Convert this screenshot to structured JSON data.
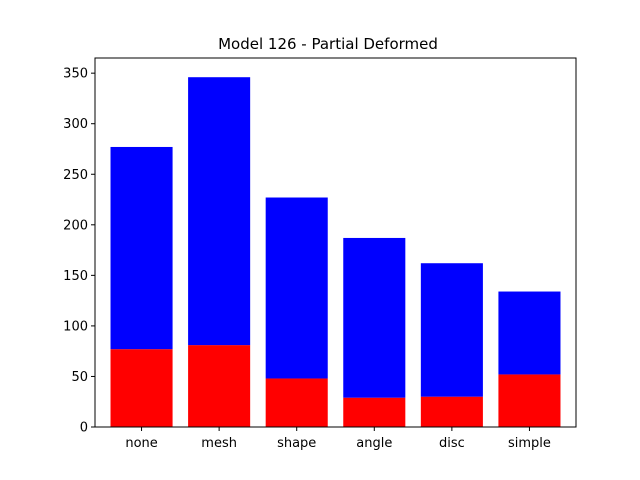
{
  "chart_data": {
    "type": "bar",
    "stacked": true,
    "title": "Model 126 - Partial Deformed",
    "xlabel": "",
    "ylabel": "",
    "categories": [
      "none",
      "mesh",
      "shape",
      "angle",
      "disc",
      "simple"
    ],
    "series": [
      {
        "color": "#ff0000",
        "values": [
          77,
          81,
          48,
          29,
          30,
          52
        ]
      },
      {
        "color": "#0000ff",
        "values": [
          200,
          265,
          179,
          158,
          132,
          82
        ]
      }
    ],
    "totals": [
      277,
      346,
      227,
      187,
      162,
      134
    ],
    "ylim": [
      0,
      365
    ],
    "yticks": [
      0,
      50,
      100,
      150,
      200,
      250,
      300,
      350
    ],
    "grid": false
  }
}
